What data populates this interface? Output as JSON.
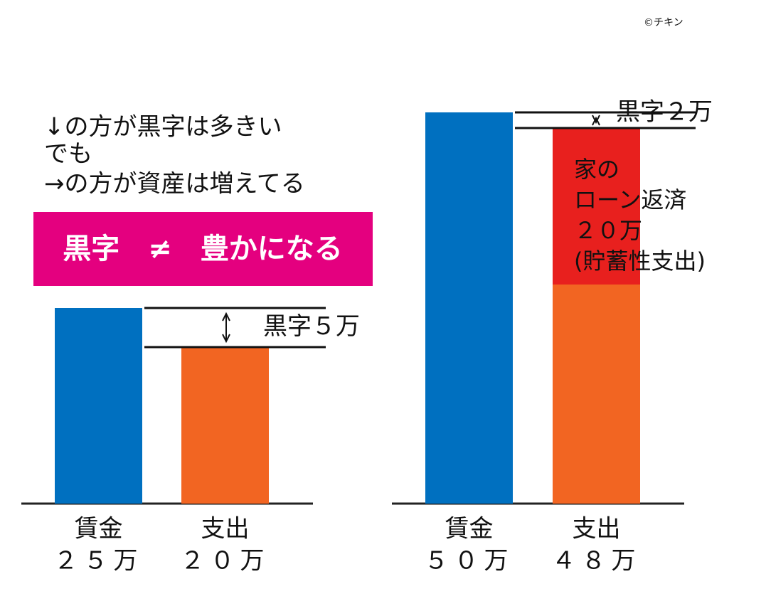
{
  "credit": "©チキン",
  "notes": [
    "↓の方が黒字は多きい",
    "でも",
    "→の方が資産は増えてる"
  ],
  "banner": "黒字　≠　豊かになる",
  "chart_data": [
    {
      "type": "bar",
      "categories": [
        "賃金",
        "支出"
      ],
      "values": [
        25,
        20
      ],
      "value_labels": [
        "２５万",
        "２０万"
      ],
      "colors": [
        "#0070c0",
        "#f26522"
      ],
      "annotation": "黒字５万"
    },
    {
      "type": "bar",
      "categories": [
        "賃金",
        "支出"
      ],
      "values": [
        50,
        48
      ],
      "value_labels": [
        "５０万",
        "４８万"
      ],
      "colors": [
        "#0070c0",
        "#f26522"
      ],
      "annotation": "黒字２万",
      "overlay": {
        "value": 20,
        "color": "#e8201e",
        "label": [
          "家の",
          "ローン返済",
          "２０万",
          "(貯蓄性支出)"
        ]
      }
    }
  ]
}
